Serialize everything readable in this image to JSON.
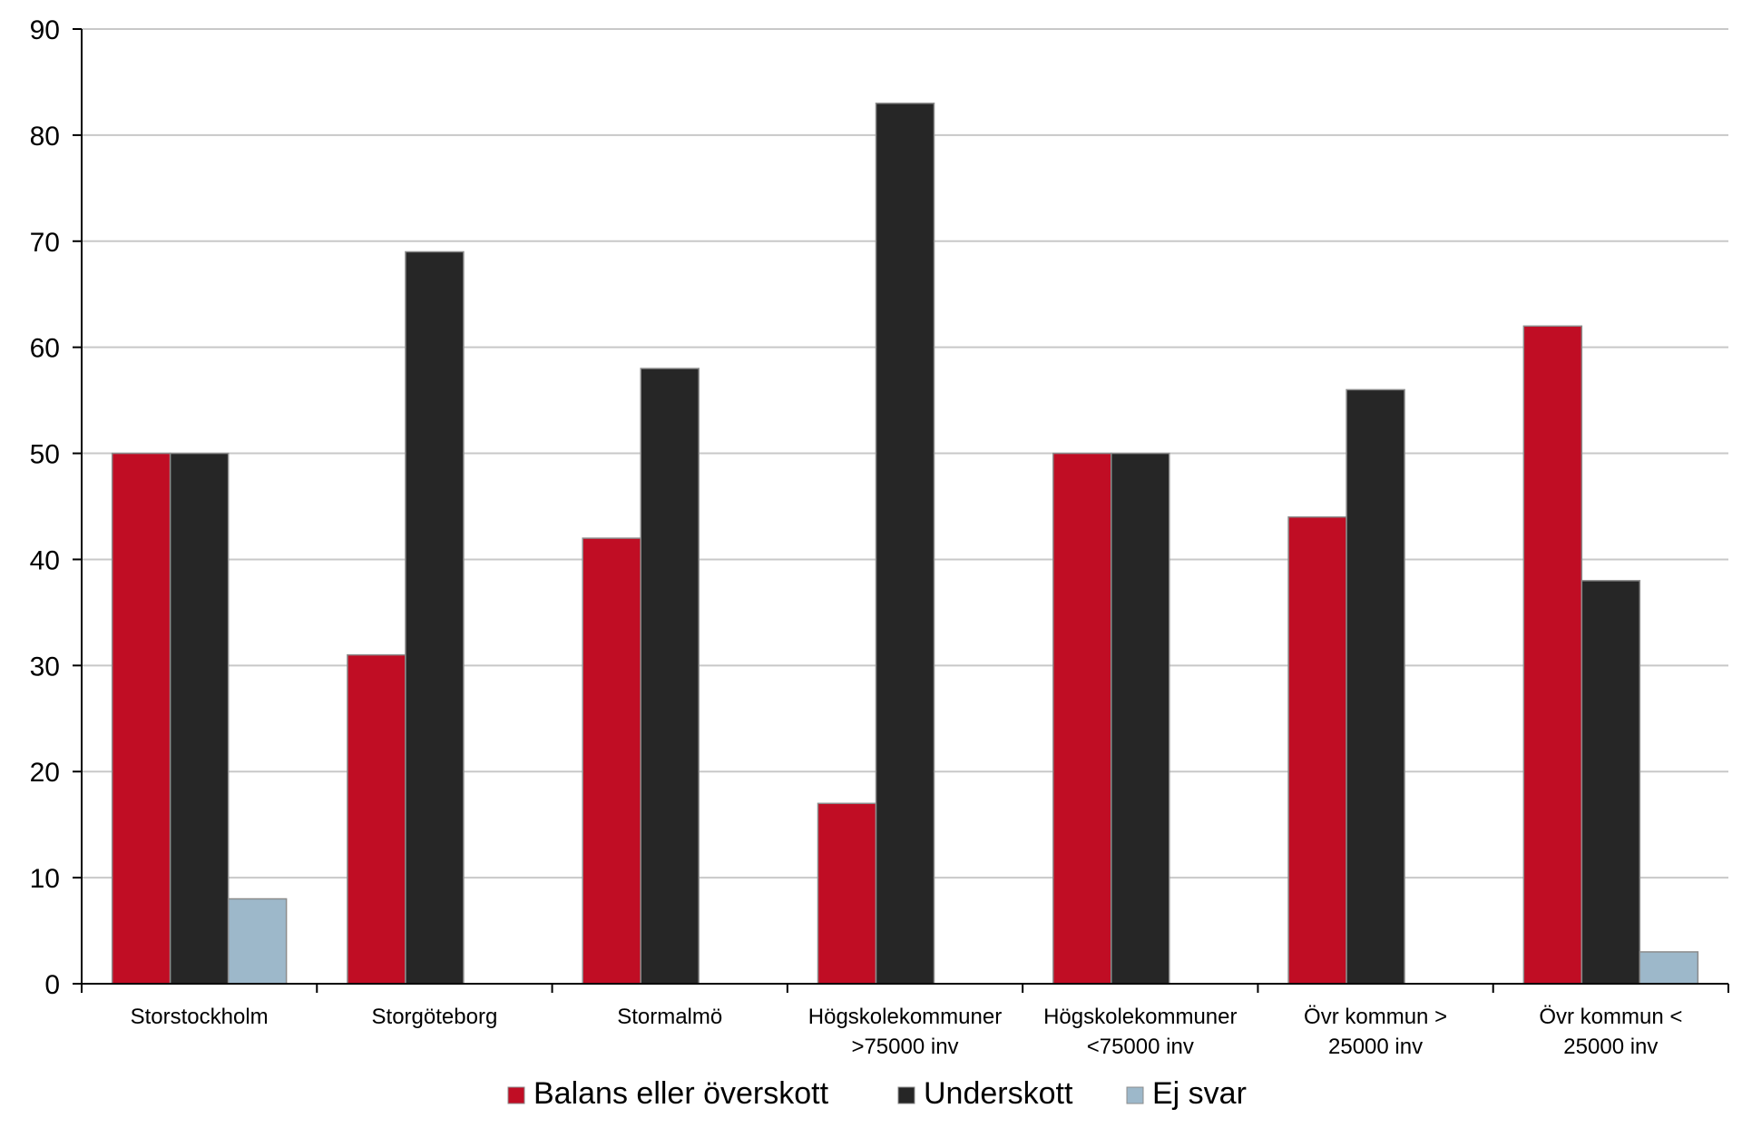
{
  "chart_data": {
    "type": "bar",
    "categories": [
      [
        "Storstockholm"
      ],
      [
        "Storgöteborg"
      ],
      [
        "Stormalmö"
      ],
      [
        "Högskolekommuner",
        ">75000 inv"
      ],
      [
        "Högskolekommuner",
        "<75000 inv"
      ],
      [
        "Övr kommun >",
        "25000 inv"
      ],
      [
        "Övr kommun <",
        "25000 inv"
      ]
    ],
    "series": [
      {
        "name": "Balans eller överskott",
        "color": "#C00D24",
        "values": [
          50,
          31,
          42,
          17,
          50,
          44,
          62
        ]
      },
      {
        "name": "Underskott",
        "color": "#262626",
        "values": [
          50,
          69,
          58,
          83,
          50,
          56,
          38
        ]
      },
      {
        "name": "Ej svar",
        "color": "#9DB8CA",
        "values": [
          8,
          0,
          0,
          0,
          0,
          0,
          3
        ]
      }
    ],
    "ylim": [
      0,
      90
    ],
    "yticks": [
      0,
      10,
      20,
      30,
      40,
      50,
      60,
      70,
      80,
      90
    ],
    "grid": true,
    "legend_position": "bottom",
    "title": "",
    "xlabel": "",
    "ylabel": ""
  }
}
